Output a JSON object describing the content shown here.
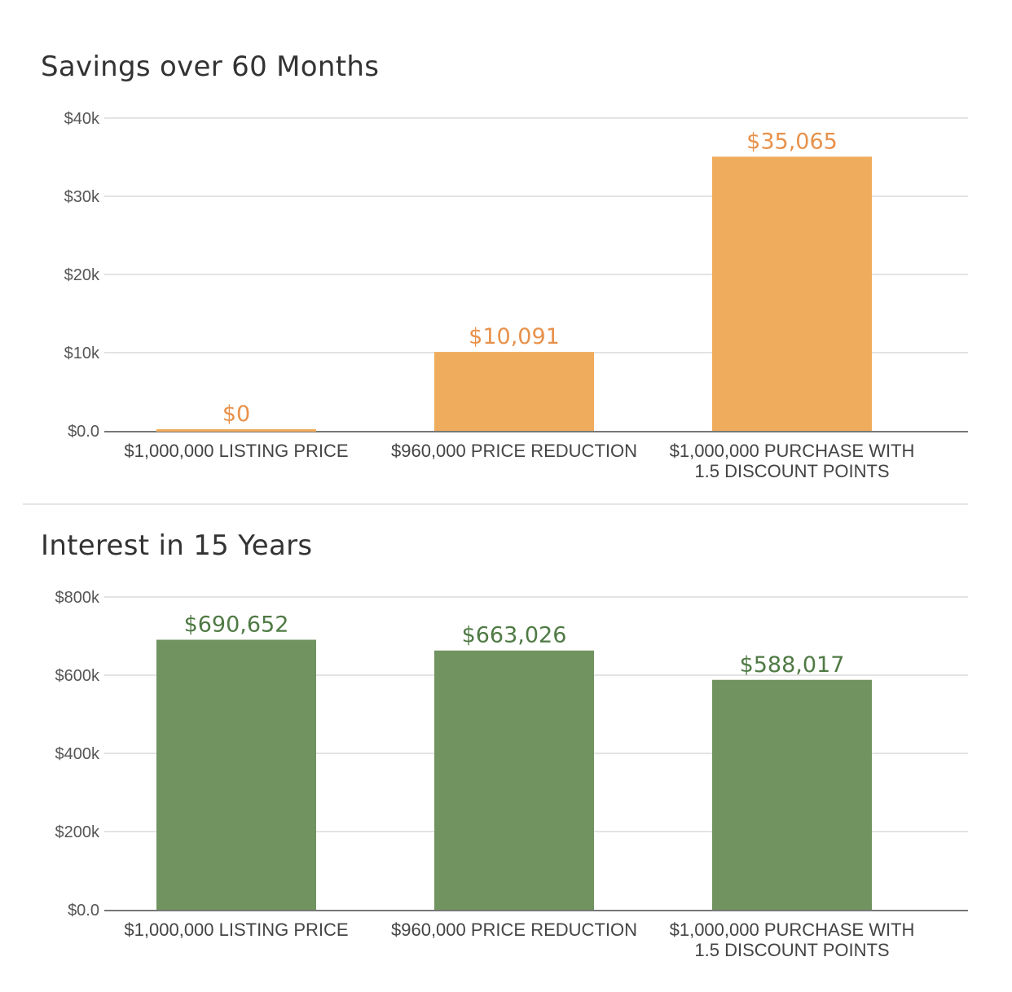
{
  "chart_data": [
    {
      "type": "bar",
      "title": "Savings over 60 Months",
      "xlabel": "",
      "ylabel": "",
      "categories": [
        [
          "$1,000,000 LISTING PRICE"
        ],
        [
          "$960,000 PRICE REDUCTION"
        ],
        [
          "$1,000,000 PURCHASE WITH",
          "1.5 DISCOUNT POINTS"
        ]
      ],
      "values": [
        0,
        10091,
        35065
      ],
      "data_labels": [
        "$0",
        "$10,091",
        "$35,065"
      ],
      "ylim": [
        0,
        40000
      ],
      "yticks": [
        0,
        10000,
        20000,
        30000,
        40000
      ],
      "ytick_labels": [
        "$0.0",
        "$10k",
        "$20k",
        "$30k",
        "$40k"
      ],
      "grid": true,
      "legend": "none",
      "colors": {
        "bar": "#efac5c",
        "label": "#e8914a"
      }
    },
    {
      "type": "bar",
      "title": "Interest in 15 Years",
      "xlabel": "",
      "ylabel": "",
      "categories": [
        [
          "$1,000,000 LISTING PRICE"
        ],
        [
          "$960,000 PRICE REDUCTION"
        ],
        [
          "$1,000,000 PURCHASE WITH",
          "1.5 DISCOUNT POINTS"
        ]
      ],
      "values": [
        690652,
        663026,
        588017
      ],
      "data_labels": [
        "$690,652",
        "$663,026",
        "$588,017"
      ],
      "ylim": [
        0,
        800000
      ],
      "yticks": [
        0,
        200000,
        400000,
        600000,
        800000
      ],
      "ytick_labels": [
        "$0.0",
        "$200k",
        "$400k",
        "$600k",
        "$800k"
      ],
      "grid": true,
      "legend": "none",
      "colors": {
        "bar": "#70935f",
        "label": "#4f7a44"
      }
    }
  ]
}
